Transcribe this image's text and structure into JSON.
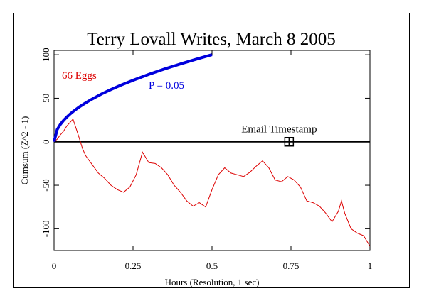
{
  "chart_data": {
    "type": "line",
    "title": "Terry Lovall Writes, March 8 2005",
    "xlabel": "Hours (Resolution, 1 sec)",
    "ylabel": "Cumsum (Z^2 - 1)",
    "xlim": [
      0,
      1
    ],
    "ylim": [
      -125,
      105
    ],
    "x_ticks": [
      0,
      0.25,
      0.5,
      0.75,
      1
    ],
    "x_tick_labels": [
      "0",
      "0.25",
      "0.5",
      "0.75",
      "1"
    ],
    "y_ticks": [
      -100,
      -50,
      0,
      50,
      100
    ],
    "y_tick_labels": [
      "-100",
      "-50",
      "0",
      "50",
      "100"
    ],
    "grid": false,
    "legend_position": "top-left",
    "series": [
      {
        "name": "66 Eggs",
        "color": "#dd0000",
        "x": [
          0,
          0.01,
          0.02,
          0.03,
          0.04,
          0.05,
          0.06,
          0.07,
          0.08,
          0.09,
          0.1,
          0.12,
          0.14,
          0.16,
          0.18,
          0.2,
          0.22,
          0.24,
          0.26,
          0.28,
          0.3,
          0.32,
          0.34,
          0.36,
          0.38,
          0.4,
          0.42,
          0.44,
          0.46,
          0.48,
          0.5,
          0.52,
          0.54,
          0.56,
          0.58,
          0.6,
          0.62,
          0.64,
          0.66,
          0.68,
          0.7,
          0.72,
          0.74,
          0.76,
          0.78,
          0.8,
          0.82,
          0.84,
          0.86,
          0.88,
          0.9,
          0.91,
          0.92,
          0.94,
          0.96,
          0.98,
          1.0
        ],
        "y": [
          0,
          3,
          8,
          12,
          18,
          22,
          26,
          15,
          4,
          -8,
          -16,
          -26,
          -36,
          -42,
          -50,
          -55,
          -58,
          -52,
          -38,
          -12,
          -24,
          -25,
          -30,
          -38,
          -50,
          -58,
          -68,
          -74,
          -70,
          -75,
          -55,
          -38,
          -30,
          -36,
          -38,
          -40,
          -35,
          -28,
          -22,
          -30,
          -44,
          -46,
          -40,
          -44,
          -52,
          -68,
          -70,
          -74,
          -82,
          -92,
          -80,
          -68,
          -82,
          -100,
          -105,
          -108,
          -120
        ]
      },
      {
        "name": "P = 0.05",
        "color": "#0000dd",
        "x": [
          0,
          0.01,
          0.02,
          0.03,
          0.04,
          0.05,
          0.06,
          0.08,
          0.1,
          0.12,
          0.15,
          0.18,
          0.21,
          0.25,
          0.3,
          0.35,
          0.4,
          0.45,
          0.5
        ],
        "y": [
          0,
          14.1,
          20,
          24.5,
          28.3,
          31.6,
          34.6,
          40,
          44.7,
          49,
          54.8,
          60,
          64.8,
          70.7,
          77.5,
          83.7,
          89.4,
          94.9,
          100
        ]
      }
    ],
    "annotations": [
      {
        "text": "66 Eggs",
        "color": "#dd0000"
      },
      {
        "text": "P = 0.05",
        "color": "#0000dd"
      },
      {
        "text": "Email Timestamp",
        "color": "#000000",
        "marker_x": 0.744,
        "marker_y": 0
      }
    ]
  }
}
